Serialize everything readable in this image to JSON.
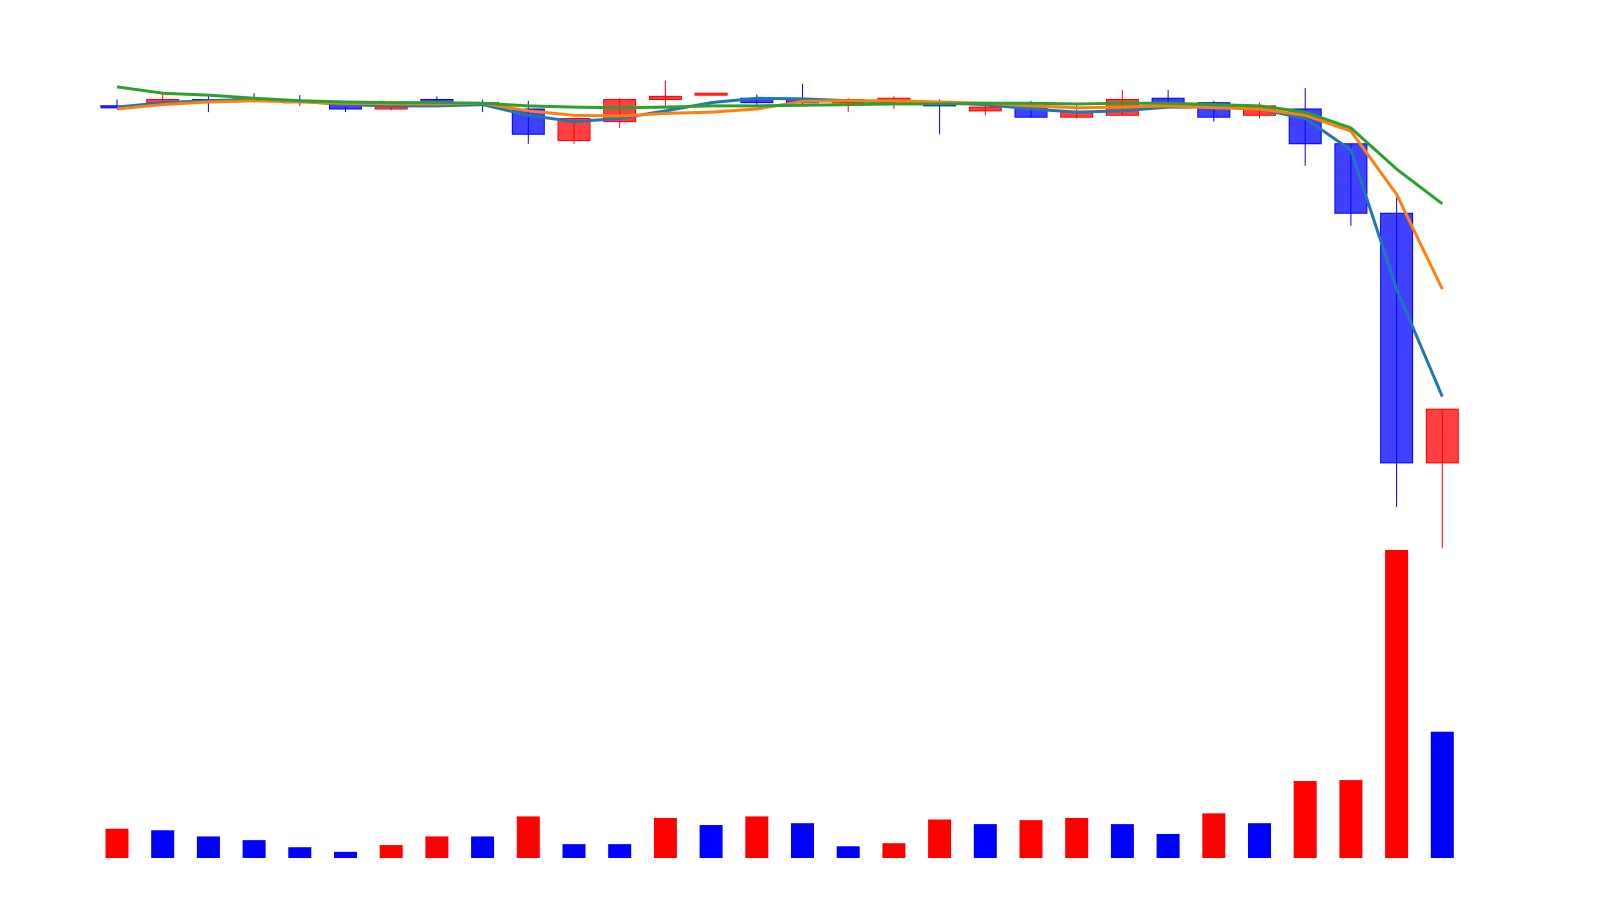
{
  "chart_data": [
    {
      "type": "candlestick",
      "title": "",
      "xlabel": "",
      "ylabel": "",
      "grid": false,
      "legend": "none",
      "ylim": [
        -6.0,
        1.2
      ],
      "colors": {
        "up": "#ff0000",
        "down": "#0000ff",
        "ma_fast": "#1f77b4",
        "ma_mid": "#ff7f0e",
        "ma_slow": "#2ca02c"
      },
      "candles": [
        {
          "o": 0.0,
          "h": 0.1,
          "l": -0.05,
          "c": -0.02
        },
        {
          "o": 0.05,
          "h": 0.22,
          "l": 0.0,
          "c": 0.1
        },
        {
          "o": 0.1,
          "h": 0.15,
          "l": -0.1,
          "c": 0.08
        },
        {
          "o": 0.12,
          "h": 0.2,
          "l": 0.05,
          "c": 0.1
        },
        {
          "o": 0.08,
          "h": 0.17,
          "l": 0.0,
          "c": 0.05
        },
        {
          "o": 0.02,
          "h": 0.07,
          "l": -0.1,
          "c": -0.05
        },
        {
          "o": -0.05,
          "h": 0.08,
          "l": -0.07,
          "c": 0.02
        },
        {
          "o": 0.1,
          "h": 0.15,
          "l": 0.02,
          "c": 0.05
        },
        {
          "o": 0.05,
          "h": 0.1,
          "l": -0.1,
          "c": 0.04
        },
        {
          "o": -0.05,
          "h": 0.08,
          "l": -0.6,
          "c": -0.45
        },
        {
          "o": -0.55,
          "h": -0.2,
          "l": -0.6,
          "c": -0.2
        },
        {
          "o": -0.25,
          "h": 0.12,
          "l": -0.35,
          "c": 0.1
        },
        {
          "o": 0.1,
          "h": 0.4,
          "l": 0.0,
          "c": 0.15
        },
        {
          "o": 0.2,
          "h": 0.2,
          "l": 0.2,
          "c": 0.2
        },
        {
          "o": 0.12,
          "h": 0.18,
          "l": 0.0,
          "c": 0.05
        },
        {
          "o": 0.1,
          "h": 0.35,
          "l": 0.0,
          "c": 0.05
        },
        {
          "o": 0.05,
          "h": 0.12,
          "l": -0.1,
          "c": 0.1
        },
        {
          "o": 0.05,
          "h": 0.15,
          "l": -0.05,
          "c": 0.12
        },
        {
          "o": 0.05,
          "h": 0.1,
          "l": -0.45,
          "c": 0.0
        },
        {
          "o": -0.08,
          "h": 0.05,
          "l": -0.15,
          "c": -0.02
        },
        {
          "o": 0.0,
          "h": 0.08,
          "l": -0.18,
          "c": -0.18
        },
        {
          "o": -0.18,
          "h": 0.05,
          "l": -0.2,
          "c": -0.1
        },
        {
          "o": -0.15,
          "h": 0.25,
          "l": -0.15,
          "c": 0.1
        },
        {
          "o": 0.12,
          "h": 0.25,
          "l": 0.05,
          "c": 0.05
        },
        {
          "o": 0.05,
          "h": 0.08,
          "l": -0.25,
          "c": -0.18
        },
        {
          "o": -0.15,
          "h": 0.05,
          "l": -0.2,
          "c": 0.0
        },
        {
          "o": -0.05,
          "h": 0.28,
          "l": -0.95,
          "c": -0.6
        },
        {
          "o": -0.6,
          "h": -0.6,
          "l": -1.9,
          "c": -1.7
        },
        {
          "o": -1.7,
          "h": -1.45,
          "l": -6.35,
          "c": -5.65
        },
        {
          "o": -5.65,
          "h": -4.8,
          "l": -7.0,
          "c": -4.8
        }
      ],
      "moving_averages": [
        {
          "color": "#1f77b4",
          "values": [
            -0.02,
            0.05,
            0.08,
            0.1,
            0.07,
            0.02,
            0.0,
            0.0,
            0.02,
            -0.15,
            -0.25,
            -0.2,
            -0.08,
            0.05,
            0.12,
            0.11,
            0.08,
            0.06,
            0.05,
            0.02,
            -0.05,
            -0.1,
            -0.08,
            -0.02,
            -0.02,
            -0.05,
            -0.2,
            -0.7,
            -2.9,
            -4.6
          ]
        },
        {
          "color": "#ff7f0e",
          "values": [
            -0.05,
            0.02,
            0.06,
            0.08,
            0.06,
            0.04,
            0.03,
            0.03,
            0.04,
            -0.08,
            -0.15,
            -0.16,
            -0.12,
            -0.1,
            -0.05,
            0.07,
            0.08,
            0.08,
            0.06,
            0.04,
            0.0,
            -0.03,
            -0.02,
            0.0,
            -0.03,
            -0.05,
            -0.15,
            -0.4,
            -1.4,
            -2.9
          ]
        },
        {
          "color": "#2ca02c",
          "values": [
            0.3,
            0.2,
            0.17,
            0.12,
            0.08,
            0.06,
            0.05,
            0.05,
            0.04,
            0.0,
            -0.02,
            -0.03,
            -0.02,
            0.0,
            0.0,
            0.01,
            0.02,
            0.03,
            0.03,
            0.04,
            0.04,
            0.03,
            0.04,
            0.04,
            0.02,
            0.0,
            -0.1,
            -0.35,
            -1.0,
            -1.55
          ]
        }
      ]
    },
    {
      "type": "bar",
      "title": "",
      "xlabel": "",
      "ylabel": "",
      "grid": false,
      "legend": "none",
      "ylim": [
        0,
        100
      ],
      "values": [
        9.5,
        9.0,
        7.0,
        5.8,
        3.5,
        2.0,
        4.2,
        7.0,
        7.0,
        13.5,
        4.5,
        4.5,
        13.0,
        10.7,
        13.5,
        11.3,
        3.8,
        4.8,
        12.5,
        11.0,
        12.3,
        13.0,
        11.0,
        7.8,
        14.5,
        11.3,
        25.0,
        25.3,
        100.0,
        41.0
      ],
      "bar_colors": [
        "up",
        "down",
        "down",
        "down",
        "down",
        "down",
        "up",
        "up",
        "down",
        "up",
        "down",
        "down",
        "up",
        "down",
        "up",
        "down",
        "down",
        "up",
        "up",
        "down",
        "up",
        "up",
        "down",
        "down",
        "up",
        "down",
        "up",
        "up",
        "up",
        "down"
      ]
    }
  ]
}
